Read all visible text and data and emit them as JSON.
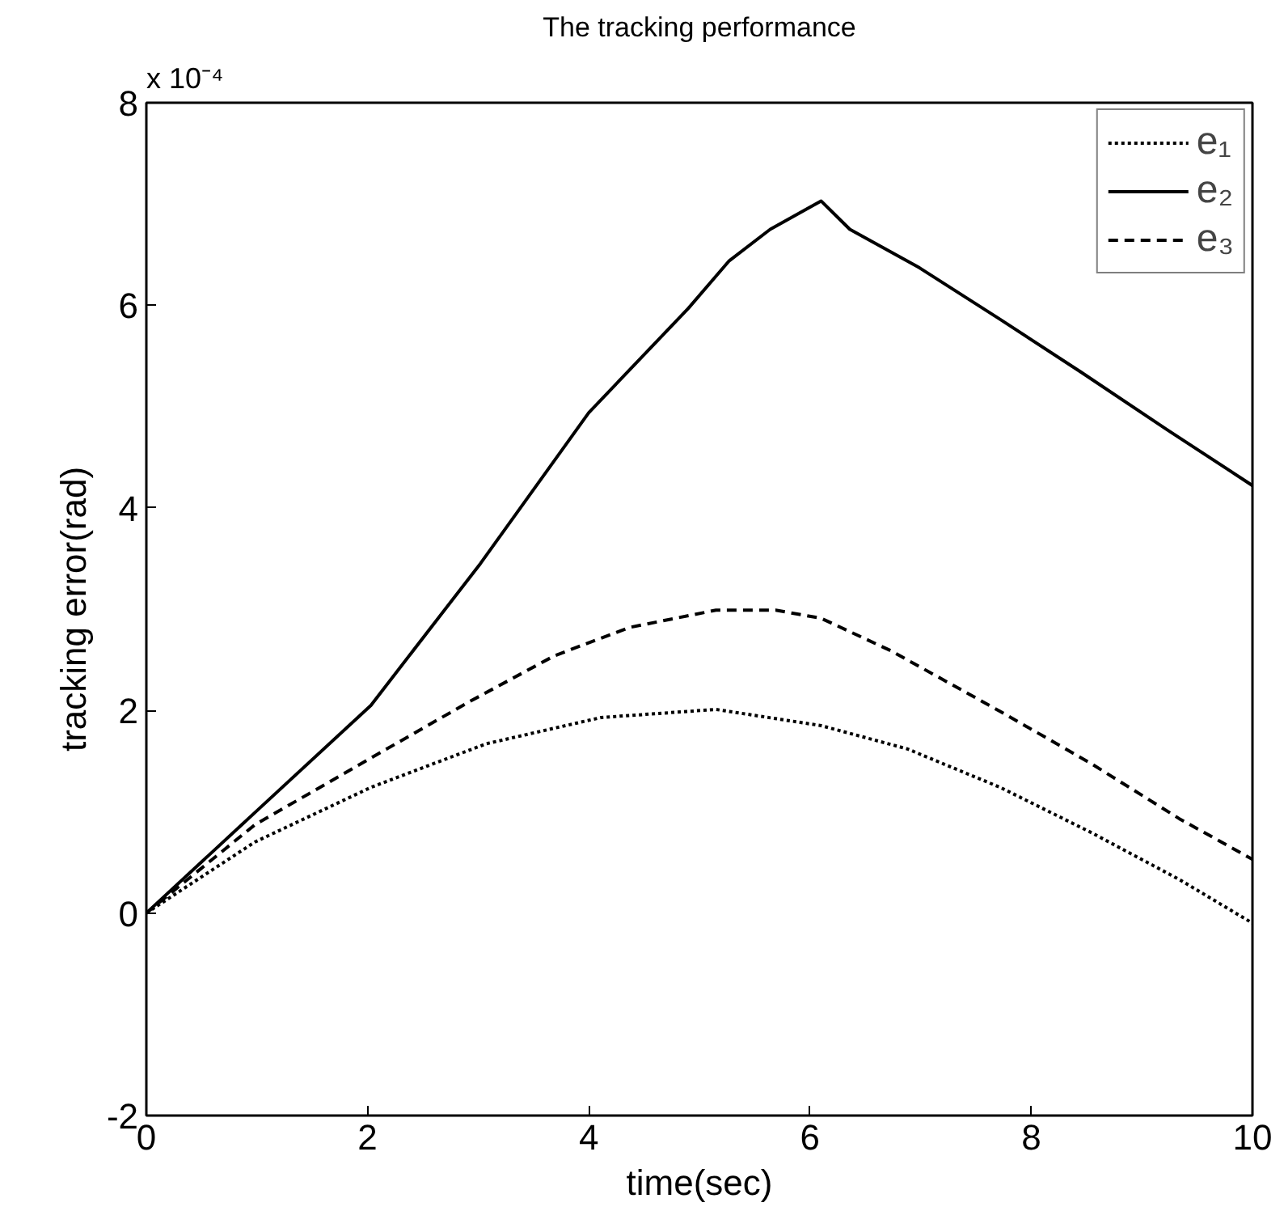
{
  "chart_data": {
    "type": "line",
    "title": "The tracking performance",
    "xlabel": "time(sec)",
    "ylabel": "tracking error(rad)",
    "annotations": [
      "x 10⁻⁴"
    ],
    "xlim": [
      0,
      10
    ],
    "ylim": [
      -2,
      8
    ],
    "xticks": [
      0,
      2,
      4,
      6,
      8,
      10
    ],
    "yticks": [
      -2,
      0,
      2,
      4,
      6,
      8
    ],
    "grid": false,
    "legend": "top right",
    "marker": "none",
    "series": [
      {
        "name": "e₁",
        "color": "#000000",
        "line_style": "dotted",
        "x": [
          0,
          0.98,
          2.03,
          3.07,
          4.11,
          5.15,
          6.1,
          6.88,
          7.72,
          8.55,
          9.34,
          10
        ],
        "values": [
          0,
          0.7,
          1.24,
          1.67,
          1.93,
          2.01,
          1.85,
          1.62,
          1.24,
          0.79,
          0.33,
          -0.1
        ]
      },
      {
        "name": "e₂",
        "color": "#000000",
        "line_style": "solid",
        "x": [
          0,
          0.98,
          2.03,
          3.02,
          4.0,
          4.9,
          5.27,
          5.64,
          6.1,
          6.36,
          6.99,
          7.72,
          8.45,
          9.23,
          10
        ],
        "values": [
          0,
          0.99,
          2.05,
          3.45,
          4.94,
          5.97,
          6.44,
          6.75,
          7.03,
          6.75,
          6.37,
          5.86,
          5.34,
          4.77,
          4.22
        ]
      },
      {
        "name": "e₃",
        "color": "#000000",
        "line_style": "dashed",
        "x": [
          0,
          0.98,
          2.03,
          2.91,
          3.69,
          4.37,
          5.15,
          5.69,
          6.1,
          6.73,
          7.72,
          8.55,
          9.34,
          10
        ],
        "values": [
          0,
          0.87,
          1.53,
          2.08,
          2.54,
          2.82,
          2.99,
          2.99,
          2.91,
          2.59,
          1.99,
          1.47,
          0.93,
          0.53
        ]
      }
    ]
  }
}
